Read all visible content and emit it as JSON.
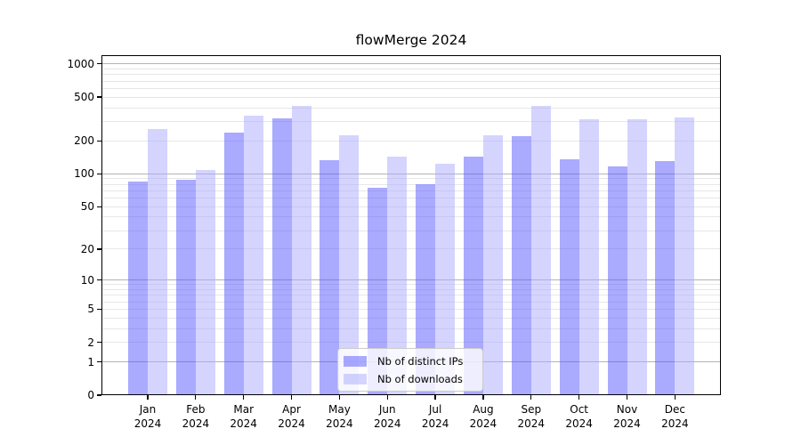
{
  "chart_data": {
    "type": "bar",
    "title": "flowMerge 2024",
    "categories": [
      "Jan 2024",
      "Feb 2024",
      "Mar 2024",
      "Apr 2024",
      "May 2024",
      "Jun 2024",
      "Jul 2024",
      "Aug 2024",
      "Sep 2024",
      "Oct 2024",
      "Nov 2024",
      "Dec 2024"
    ],
    "series": [
      {
        "name": "Nb of distinct IPs",
        "color": "rgba(85,85,255,0.5)",
        "values": [
          85,
          89,
          240,
          320,
          134,
          74,
          80,
          144,
          220,
          135,
          118,
          131
        ]
      },
      {
        "name": "Nb of downloads",
        "color": "rgba(170,170,255,0.5)",
        "values": [
          255,
          108,
          340,
          415,
          223,
          145,
          123,
          223,
          415,
          315,
          315,
          328
        ]
      }
    ],
    "xlabel": "",
    "ylabel": "",
    "yscale": "log1p",
    "ylim": [
      0,
      1200
    ],
    "yticks": [
      0,
      1,
      2,
      5,
      10,
      20,
      50,
      100,
      200,
      500,
      1000
    ],
    "grid": "both",
    "legend_position": "inside bottom-center"
  }
}
